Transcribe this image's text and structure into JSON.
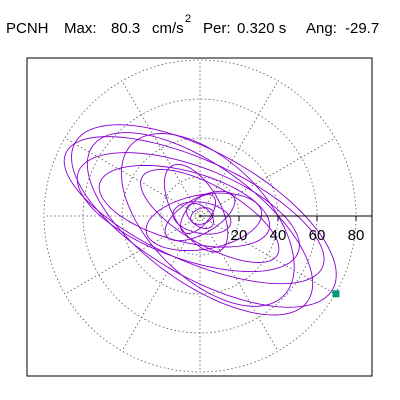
{
  "header": {
    "station": "PCNH",
    "max_label": "Max:",
    "max_value": "80.3",
    "max_unit": "cm/s",
    "max_unit_exp": "2",
    "per_label": "Per:",
    "per_value": "0.320 s",
    "ang_label": "Ang:",
    "ang_value": "-29.7"
  },
  "chart_data": {
    "type": "line",
    "subtype": "polar-hodogram",
    "title": "",
    "xlabel": "",
    "ylabel": "",
    "radial_range": [
      0,
      80
    ],
    "radial_ticks": [
      20,
      40,
      60,
      80
    ],
    "tick_labels": [
      "20",
      "40",
      "60",
      "80"
    ],
    "angular_spokes_deg": [
      0,
      30,
      60,
      90,
      120,
      150,
      180,
      210,
      240,
      270,
      300,
      330
    ],
    "grid": true,
    "legend": "none",
    "series_color": "#8a00d4",
    "marker_color": "#009a78",
    "max_point": {
      "x": 69.7,
      "y": -39.9
    },
    "ellipses": [
      {
        "a": 76,
        "b": 32,
        "tilt_deg": -29.7,
        "cx": 2,
        "cy": 0
      },
      {
        "a": 72,
        "b": 26,
        "tilt_deg": -24,
        "cx": -3,
        "cy": 3
      },
      {
        "a": 68,
        "b": 30,
        "tilt_deg": -36,
        "cx": 0,
        "cy": -4
      },
      {
        "a": 60,
        "b": 24,
        "tilt_deg": -20,
        "cx": -6,
        "cy": 2
      },
      {
        "a": 55,
        "b": 30,
        "tilt_deg": -45,
        "cx": 4,
        "cy": -2
      },
      {
        "a": 45,
        "b": 18,
        "tilt_deg": -15,
        "cx": -8,
        "cy": 5
      },
      {
        "a": 40,
        "b": 15,
        "tilt_deg": -30,
        "cx": 5,
        "cy": 0
      },
      {
        "a": 30,
        "b": 14,
        "tilt_deg": 10,
        "cx": 2,
        "cy": -3
      },
      {
        "a": 25,
        "b": 12,
        "tilt_deg": -60,
        "cx": -2,
        "cy": 4
      },
      {
        "a": 20,
        "b": 9,
        "tilt_deg": 30,
        "cx": 0,
        "cy": 0
      },
      {
        "a": 15,
        "b": 8,
        "tilt_deg": -10,
        "cx": 1,
        "cy": -1
      },
      {
        "a": 12,
        "b": 6,
        "tilt_deg": 50,
        "cx": -1,
        "cy": 1
      },
      {
        "a": 8,
        "b": 5,
        "tilt_deg": -40,
        "cx": 0,
        "cy": 0
      },
      {
        "a": 6,
        "b": 4,
        "tilt_deg": 20,
        "cx": 1,
        "cy": 0
      }
    ]
  }
}
